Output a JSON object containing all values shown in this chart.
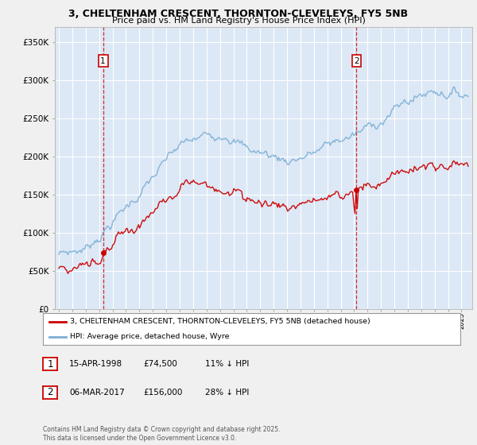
{
  "title_line1": "3, CHELTENHAM CRESCENT, THORNTON-CLEVELEYS, FY5 5NB",
  "title_line2": "Price paid vs. HM Land Registry's House Price Index (HPI)",
  "ylim": [
    0,
    370000
  ],
  "yticks": [
    0,
    50000,
    100000,
    150000,
    200000,
    250000,
    300000,
    350000
  ],
  "ytick_labels": [
    "£0",
    "£50K",
    "£100K",
    "£150K",
    "£200K",
    "£250K",
    "£300K",
    "£350K"
  ],
  "background_color": "#f0f0f0",
  "plot_bg_color": "#dce8f5",
  "grid_color": "#ffffff",
  "sale1_year": 1998.29,
  "sale1_price": 74500,
  "sale2_year": 2017.18,
  "sale2_price": 156000,
  "sale1_text_date": "15-APR-1998",
  "sale1_text_price": "£74,500",
  "sale1_text_hpi": "11% ↓ HPI",
  "sale2_text_date": "06-MAR-2017",
  "sale2_text_price": "£156,000",
  "sale2_text_hpi": "28% ↓ HPI",
  "legend_label_red": "3, CHELTENHAM CRESCENT, THORNTON-CLEVELEYS, FY5 5NB (detached house)",
  "legend_label_blue": "HPI: Average price, detached house, Wyre",
  "footer_text": "Contains HM Land Registry data © Crown copyright and database right 2025.\nThis data is licensed under the Open Government Licence v3.0.",
  "red_color": "#cc0000",
  "blue_color": "#7aaed6",
  "vline_color": "#cc0000"
}
